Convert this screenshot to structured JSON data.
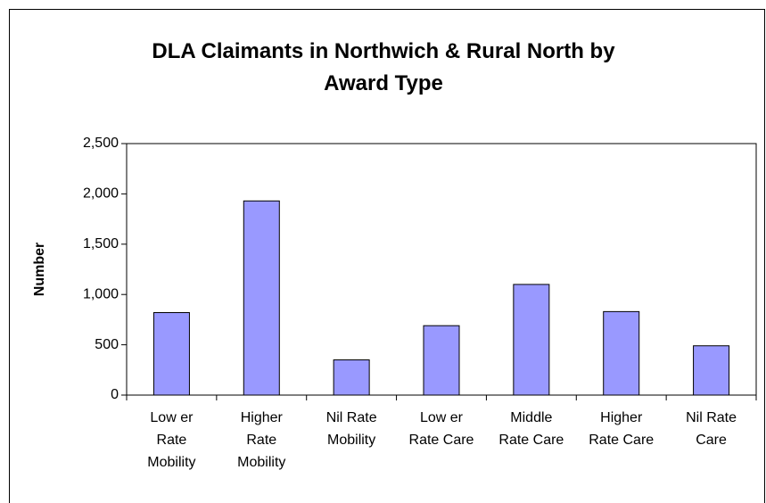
{
  "chart_data": {
    "type": "bar",
    "title": "DLA Claimants in Northwich & Rural North by Award Type",
    "y_label": "Number",
    "categories": [
      [
        "Low er",
        "Rate",
        "Mobility"
      ],
      [
        "Higher",
        "Rate",
        "Mobility"
      ],
      [
        "Nil Rate",
        "Mobility"
      ],
      [
        "Low er",
        "Rate Care"
      ],
      [
        "Middle",
        "Rate Care"
      ],
      [
        "Higher",
        "Rate Care"
      ],
      [
        "Nil Rate",
        "Care"
      ]
    ],
    "values": [
      820,
      1930,
      350,
      690,
      1100,
      830,
      490
    ],
    "color": "#9999ff",
    "ylim": [
      0,
      2500
    ],
    "yticks": [
      0,
      500,
      {
        "value": 1000,
        "label": "1,000"
      },
      {
        "value": 1500,
        "label": "1,500"
      },
      {
        "value": 2000,
        "label": "2,000"
      },
      {
        "value": 2500,
        "label": "2,500"
      }
    ],
    "grid": false
  }
}
